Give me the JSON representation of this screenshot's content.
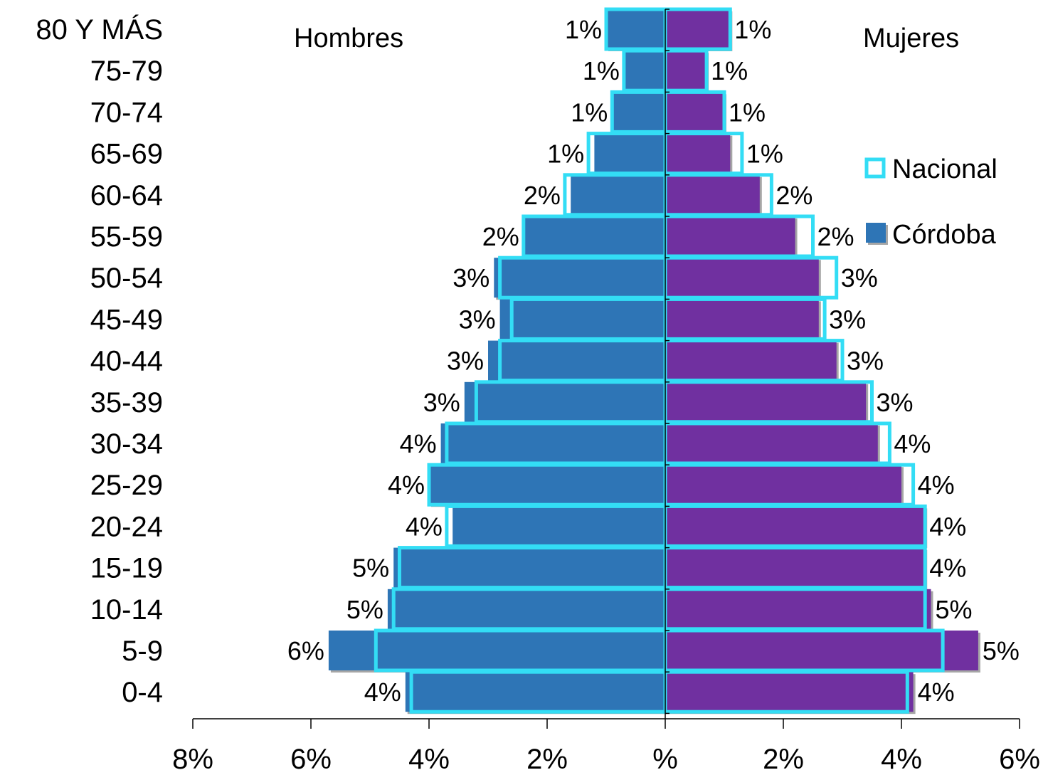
{
  "chart_data": {
    "type": "bar",
    "orientation": "horizontal",
    "layout": "population-pyramid",
    "left_label": "Hombres",
    "right_label": "Mujeres",
    "categories": [
      "80 Y MÁS",
      "75-79",
      "70-74",
      "65-69",
      "60-64",
      "55-59",
      "50-54",
      "45-49",
      "40-44",
      "35-39",
      "30-34",
      "25-29",
      "20-24",
      "15-19",
      "10-14",
      "5-9",
      "0-4"
    ],
    "x_ticks": [
      "8%",
      "6%",
      "4%",
      "2%",
      "%",
      "2%",
      "4%",
      "6%"
    ],
    "x_tick_values": [
      -8,
      -6,
      -4,
      -2,
      0,
      2,
      4,
      6
    ],
    "xlim": [
      -8,
      6
    ],
    "series": [
      {
        "name": "Córdoba",
        "style": "filled",
        "male": [
          1.0,
          0.7,
          0.9,
          1.2,
          1.6,
          2.4,
          2.9,
          2.8,
          3.0,
          3.4,
          3.8,
          4.0,
          3.6,
          4.6,
          4.7,
          5.7,
          4.4
        ],
        "female": [
          1.1,
          0.7,
          1.0,
          1.1,
          1.6,
          2.2,
          2.6,
          2.6,
          2.9,
          3.4,
          3.6,
          4.0,
          4.4,
          4.4,
          4.5,
          5.3,
          4.2
        ]
      },
      {
        "name": "Nacional",
        "style": "outline",
        "male": [
          1.0,
          0.7,
          0.9,
          1.3,
          1.7,
          2.4,
          2.8,
          2.6,
          2.8,
          3.2,
          3.7,
          4.0,
          3.7,
          4.5,
          4.6,
          4.9,
          4.3
        ],
        "female": [
          1.1,
          0.7,
          1.0,
          1.3,
          1.8,
          2.5,
          2.9,
          2.7,
          3.0,
          3.5,
          3.8,
          4.2,
          4.4,
          4.4,
          4.4,
          4.7,
          4.1
        ]
      }
    ],
    "male_labels": [
      "1%",
      "1%",
      "1%",
      "1%",
      "2%",
      "2%",
      "3%",
      "3%",
      "3%",
      "3%",
      "4%",
      "4%",
      "4%",
      "5%",
      "5%",
      "6%",
      "4%"
    ],
    "female_labels": [
      "1%",
      "1%",
      "1%",
      "1%",
      "2%",
      "2%",
      "3%",
      "3%",
      "3%",
      "3%",
      "4%",
      "4%",
      "4%",
      "4%",
      "5%",
      "5%",
      "4%"
    ],
    "legend": {
      "position": "right",
      "entries": [
        {
          "name": "Nacional",
          "style": "outline"
        },
        {
          "name": "Córdoba",
          "style": "filled"
        }
      ]
    },
    "colors": {
      "male_fill": "#2E75B6",
      "female_fill": "#7030A0",
      "outline": "#33DDF5",
      "shadow": "#A6A6A6",
      "axis": "#000000"
    },
    "grid": false
  }
}
